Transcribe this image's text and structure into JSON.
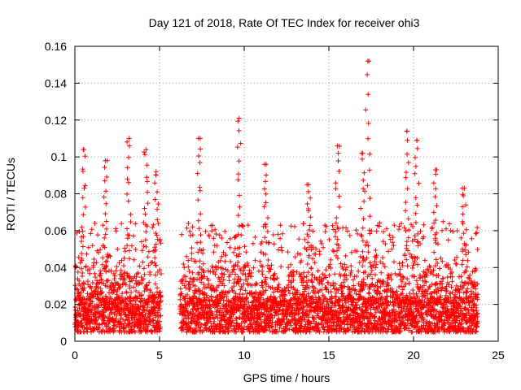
{
  "chart_data": {
    "type": "scatter",
    "title": "Day 121 of 2018, Rate Of TEC Index for receiver ohi3",
    "xlabel": "GPS time / hours",
    "ylabel": "ROTI / TECUs",
    "xlim": [
      0,
      25
    ],
    "ylim": [
      0,
      0.16
    ],
    "xticks": [
      0,
      5,
      10,
      15,
      20,
      25
    ],
    "xtick_labels": [
      "0",
      "5",
      "10",
      "15",
      "20",
      "25"
    ],
    "yticks": [
      0,
      0.02,
      0.04,
      0.06,
      0.08,
      0.1,
      0.12,
      0.14,
      0.16
    ],
    "ytick_labels": [
      "0",
      "0.02",
      "0.04",
      "0.06",
      "0.08",
      "0.1",
      "0.12",
      "0.14",
      "0.16"
    ],
    "grid": true,
    "marker": "+",
    "marker_color": "#ff0000",
    "data_gap_hours": [
      5.1,
      6.2
    ],
    "coverage_hours": [
      [
        0.0,
        5.1
      ],
      [
        6.2,
        23.8
      ]
    ],
    "peaks": [
      {
        "x": 0.5,
        "y": 0.104
      },
      {
        "x": 1.8,
        "y": 0.098
      },
      {
        "x": 3.2,
        "y": 0.11
      },
      {
        "x": 4.2,
        "y": 0.104
      },
      {
        "x": 4.8,
        "y": 0.092
      },
      {
        "x": 7.3,
        "y": 0.11
      },
      {
        "x": 9.7,
        "y": 0.121
      },
      {
        "x": 11.3,
        "y": 0.096
      },
      {
        "x": 13.8,
        "y": 0.085
      },
      {
        "x": 15.5,
        "y": 0.106
      },
      {
        "x": 17.0,
        "y": 0.102
      },
      {
        "x": 17.3,
        "y": 0.152
      },
      {
        "x": 19.6,
        "y": 0.114
      },
      {
        "x": 20.2,
        "y": 0.109
      },
      {
        "x": 21.3,
        "y": 0.093
      },
      {
        "x": 23.0,
        "y": 0.083
      }
    ]
  },
  "colors": {
    "marker": "#ff0000",
    "grid": "#a0a0a0",
    "axis": "#000000",
    "background": "#ffffff"
  }
}
